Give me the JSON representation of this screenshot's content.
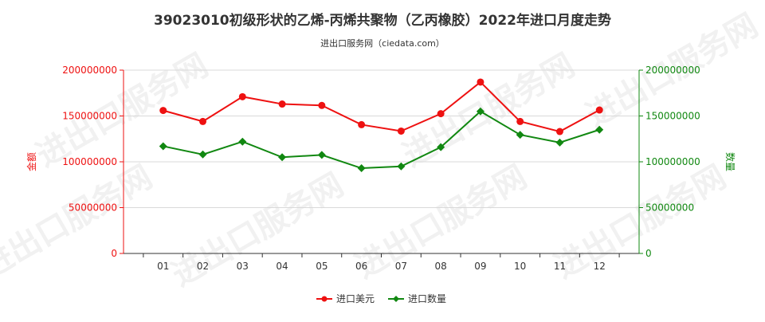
{
  "chart_data": {
    "type": "line",
    "title": "39023010初级形状的乙烯-丙烯共聚物（乙丙橡胶）2022年进口月度走势",
    "subtitle": "进出口服务网（ciedata.com）",
    "categories": [
      "01",
      "02",
      "03",
      "04",
      "05",
      "06",
      "07",
      "08",
      "09",
      "10",
      "11",
      "12"
    ],
    "series": [
      {
        "name": "进口美元",
        "axis": "left",
        "color": "#ee1111",
        "values": [
          156000000,
          144000000,
          171000000,
          163000000,
          161500000,
          140500000,
          133500000,
          152500000,
          187000000,
          144000000,
          133000000,
          156500000
        ]
      },
      {
        "name": "进口数量",
        "axis": "right",
        "color": "#118811",
        "values": [
          117000000,
          108000000,
          122000000,
          105000000,
          107500000,
          93000000,
          95000000,
          116000000,
          155000000,
          129500000,
          121000000,
          135000000
        ]
      }
    ],
    "ylabel_left": "金额",
    "ylabel_right": "数量",
    "ylim_left": [
      0,
      200000000
    ],
    "ylim_right": [
      0,
      200000000
    ],
    "yticks_left": [
      "0",
      "50000000",
      "100000000",
      "150000000",
      "200000000"
    ],
    "yticks_right": [
      "0",
      "50000000",
      "100000000",
      "150000000",
      "200000000"
    ],
    "left_axis_color": "#ee1111",
    "right_axis_color": "#118811",
    "grid": true,
    "legend_position": "bottom-center",
    "watermark": "进出口服务网"
  }
}
